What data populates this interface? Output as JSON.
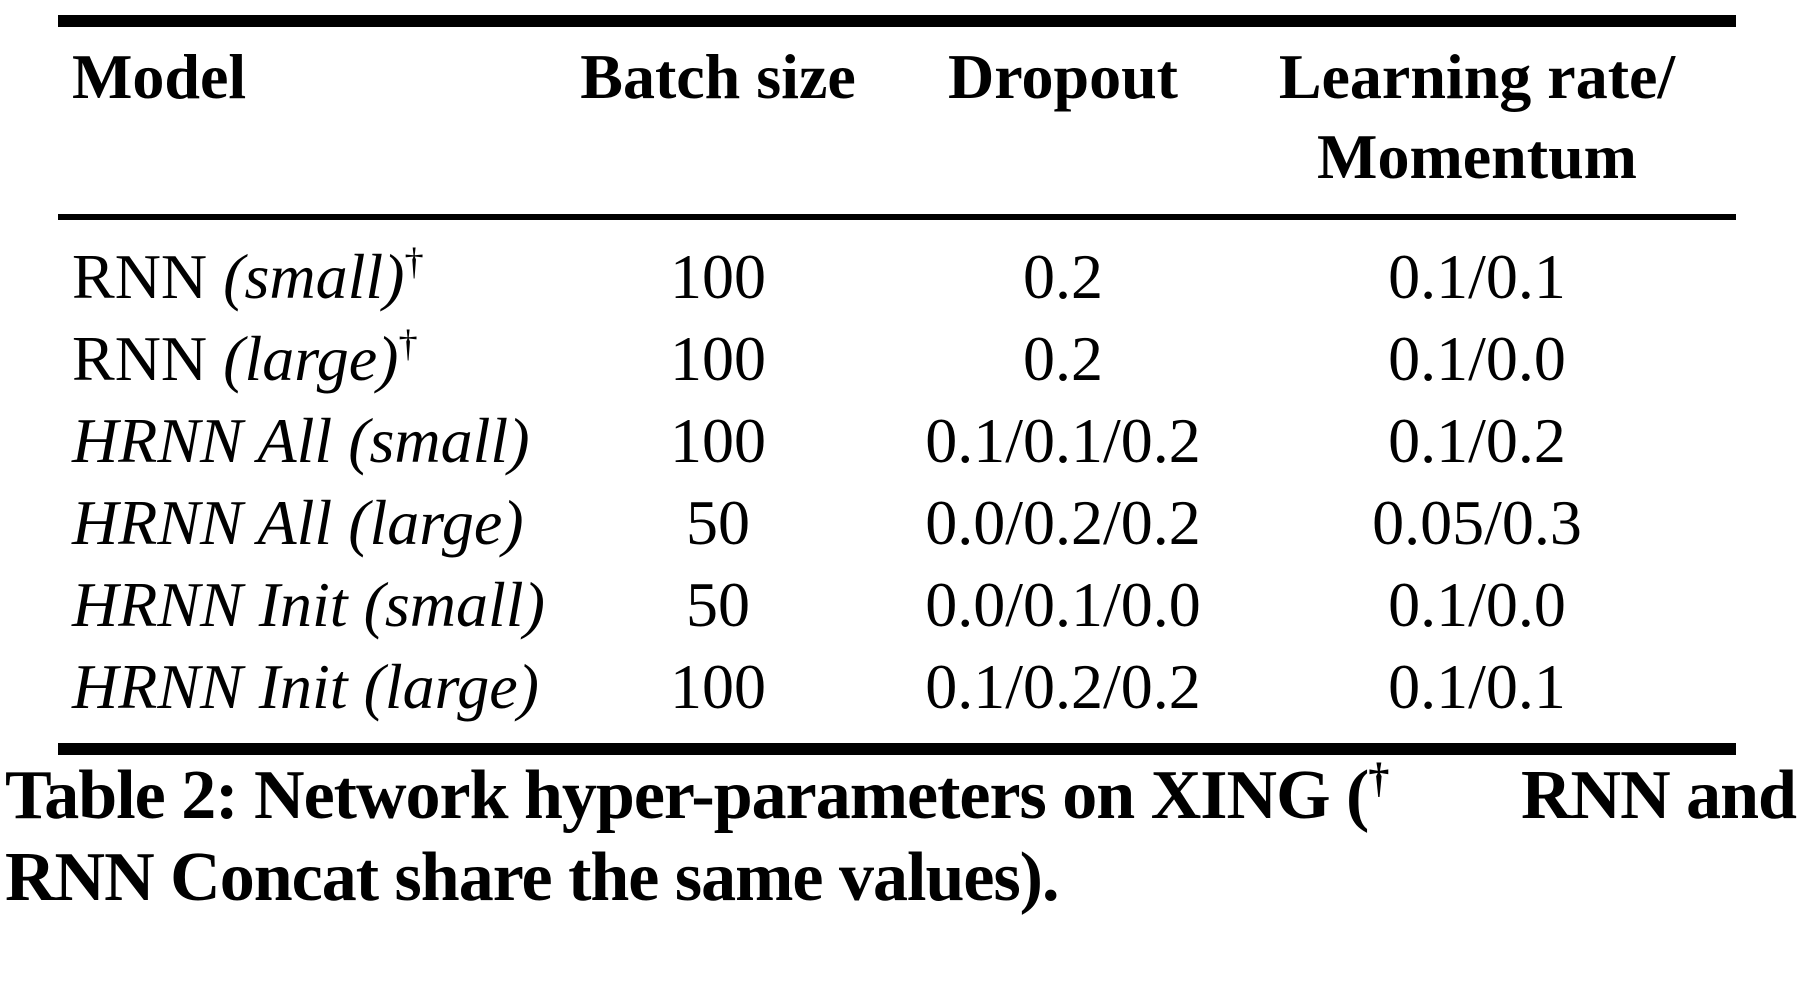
{
  "page": {
    "background_color": "#ffffff",
    "text_color": "#000000"
  },
  "table": {
    "header": {
      "model": "Model",
      "batch_size": "Batch size",
      "dropout": "Dropout",
      "learning_rate_line1": "Learning rate/",
      "learning_rate_line2": "Momentum"
    },
    "rows": [
      {
        "model_roman": "RNN ",
        "model_italic": "(small)",
        "dagger": "†",
        "batch_size": "100",
        "dropout": "0.2",
        "learning_rate_momentum": "0.1/0.1"
      },
      {
        "model_roman": "RNN ",
        "model_italic": "(large)",
        "dagger": "†",
        "batch_size": "100",
        "dropout": "0.2",
        "learning_rate_momentum": "0.1/0.0"
      },
      {
        "model_roman": "",
        "model_italic": "HRNN All (small)",
        "dagger": "",
        "batch_size": "100",
        "dropout": "0.1/0.1/0.2",
        "learning_rate_momentum": "0.1/0.2"
      },
      {
        "model_roman": "",
        "model_italic": "HRNN All (large)",
        "dagger": "",
        "batch_size": "50",
        "dropout": "0.0/0.2/0.2",
        "learning_rate_momentum": "0.05/0.3"
      },
      {
        "model_roman": "",
        "model_italic": "HRNN Init (small)",
        "dagger": "",
        "batch_size": "50",
        "dropout": "0.0/0.1/0.0",
        "learning_rate_momentum": "0.1/0.0"
      },
      {
        "model_roman": "",
        "model_italic": "HRNN Init (large)",
        "dagger": "",
        "batch_size": "100",
        "dropout": "0.1/0.2/0.2",
        "learning_rate_momentum": "0.1/0.1"
      }
    ]
  },
  "caption": {
    "line1_before_dagger": "Table 2: Network hyper-parameters on XING (",
    "dagger": "†",
    "line1_after_dagger": "RNN and",
    "line2": "RNN Concat share the same values)."
  }
}
